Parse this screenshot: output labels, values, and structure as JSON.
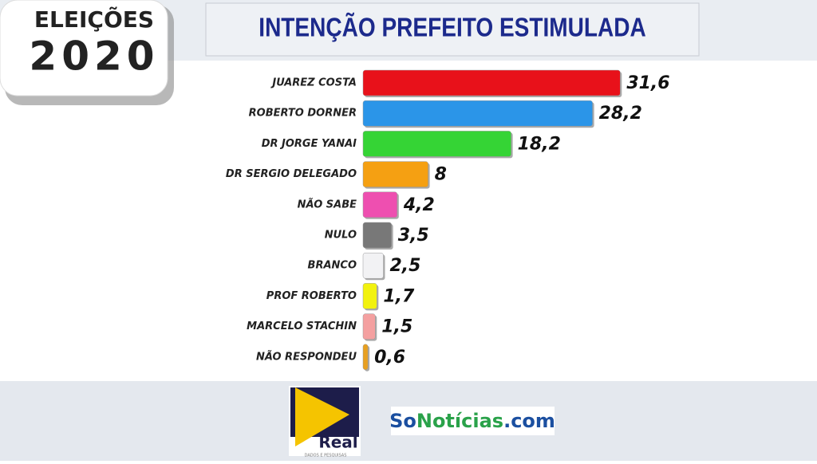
{
  "chart_data": {
    "type": "hbar",
    "title": "INTENÇÃO PREFEITO ESTIMULADA",
    "categories": [
      "JUAREZ COSTA",
      "ROBERTO DORNER",
      "DR JORGE YANAI",
      "DR SERGIO DELEGADO",
      "NÃO SABE",
      "NULO",
      "BRANCO",
      "PROF ROBERTO",
      "MARCELO STACHIN",
      "NÃO RESPONDEU"
    ],
    "values": [
      31.6,
      28.2,
      18.2,
      8,
      4.2,
      3.5,
      2.5,
      1.7,
      1.5,
      0.6
    ],
    "value_labels": [
      "31,6",
      "28,2",
      "18,2",
      "8",
      "4,2",
      "3,5",
      "2,5",
      "1,7",
      "1,5",
      "0,6"
    ],
    "colors": [
      "#e8111a",
      "#2b95e8",
      "#35d435",
      "#f5a012",
      "#ee4fb0",
      "#787878",
      "#f2f2f4",
      "#f2f20f",
      "#f4a0a0",
      "#e8a020"
    ]
  },
  "badge": {
    "line1": "ELEIÇÕES",
    "line2": "2020"
  },
  "footer": {
    "logo1": {
      "name": "Real",
      "tagline": "DADOS E PESQUISAS"
    },
    "logo2": {
      "part1": "So",
      "part2": "Notícias",
      "part3": ".com"
    }
  }
}
